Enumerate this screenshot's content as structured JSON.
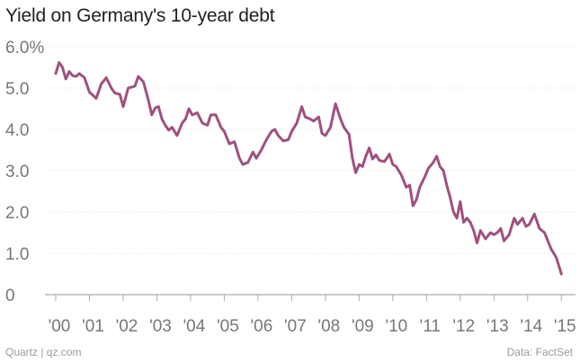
{
  "chart_data": {
    "type": "line",
    "title": "Yield on Germany's 10-year debt",
    "xlabel": "",
    "ylabel": "",
    "ylim": [
      0,
      6
    ],
    "y_ticks": [
      0,
      1.0,
      2.0,
      3.0,
      4.0,
      5.0,
      6.0
    ],
    "y_tick_labels": [
      "0",
      "1.0",
      "2.0",
      "3.0",
      "4.0",
      "5.0",
      "6.0%"
    ],
    "x_range": [
      2000.0,
      2015.1
    ],
    "x_tick_values": [
      2000,
      2001,
      2002,
      2003,
      2004,
      2005,
      2006,
      2007,
      2008,
      2009,
      2010,
      2011,
      2012,
      2013,
      2014,
      2015
    ],
    "x_tick_labels": [
      "'00",
      "'01",
      "'02",
      "'03",
      "'04",
      "'05",
      "'06",
      "'07",
      "'08",
      "'09",
      "'10",
      "'11",
      "'12",
      "'13",
      "'14",
      "'15"
    ],
    "grid": true,
    "series": [
      {
        "color": "#a0507e",
        "x": [
          2000.0,
          2000.1,
          2000.2,
          2000.3,
          2000.4,
          2000.5,
          2000.6,
          2000.7,
          2000.85,
          2001.0,
          2001.2,
          2001.35,
          2001.5,
          2001.65,
          2001.75,
          2001.9,
          2002.0,
          2002.15,
          2002.25,
          2002.35,
          2002.45,
          2002.6,
          2002.75,
          2002.85,
          2002.95,
          2003.05,
          2003.15,
          2003.25,
          2003.35,
          2003.45,
          2003.6,
          2003.75,
          2003.85,
          2003.95,
          2004.05,
          2004.2,
          2004.35,
          2004.5,
          2004.6,
          2004.75,
          2004.9,
          2005.0,
          2005.15,
          2005.3,
          2005.45,
          2005.55,
          2005.7,
          2005.85,
          2005.95,
          2006.1,
          2006.25,
          2006.4,
          2006.5,
          2006.6,
          2006.75,
          2006.9,
          2007.0,
          2007.15,
          2007.3,
          2007.4,
          2007.55,
          2007.65,
          2007.8,
          2007.9,
          2008.0,
          2008.15,
          2008.3,
          2008.45,
          2008.55,
          2008.7,
          2008.8,
          2008.9,
          2009.0,
          2009.1,
          2009.2,
          2009.3,
          2009.4,
          2009.5,
          2009.6,
          2009.75,
          2009.9,
          2010.0,
          2010.1,
          2010.25,
          2010.4,
          2010.5,
          2010.6,
          2010.7,
          2010.8,
          2010.95,
          2011.05,
          2011.2,
          2011.3,
          2011.4,
          2011.5,
          2011.6,
          2011.7,
          2011.8,
          2011.9,
          2012.0,
          2012.1,
          2012.2,
          2012.3,
          2012.4,
          2012.5,
          2012.6,
          2012.75,
          2012.9,
          2013.0,
          2013.1,
          2013.2,
          2013.3,
          2013.45,
          2013.6,
          2013.7,
          2013.85,
          2013.95,
          2014.05,
          2014.2,
          2014.35,
          2014.5,
          2014.6,
          2014.7,
          2014.85,
          2015.0
        ],
        "values": [
          5.35,
          5.62,
          5.5,
          5.22,
          5.4,
          5.3,
          5.28,
          5.35,
          5.25,
          4.9,
          4.75,
          5.1,
          5.25,
          5.0,
          4.88,
          4.85,
          4.55,
          5.0,
          5.02,
          5.05,
          5.28,
          5.15,
          4.7,
          4.35,
          4.52,
          4.55,
          4.25,
          4.1,
          3.98,
          4.05,
          3.85,
          4.15,
          4.25,
          4.5,
          4.35,
          4.4,
          4.15,
          4.1,
          4.35,
          4.35,
          4.05,
          3.95,
          3.65,
          3.7,
          3.3,
          3.15,
          3.2,
          3.45,
          3.3,
          3.5,
          3.75,
          3.95,
          4.0,
          3.85,
          3.72,
          3.75,
          3.95,
          4.15,
          4.55,
          4.3,
          4.25,
          4.2,
          4.3,
          3.9,
          3.85,
          4.05,
          4.62,
          4.25,
          4.05,
          3.88,
          3.3,
          2.95,
          3.15,
          3.1,
          3.35,
          3.55,
          3.28,
          3.38,
          3.25,
          3.22,
          3.4,
          3.15,
          3.1,
          2.9,
          2.6,
          2.65,
          2.15,
          2.3,
          2.6,
          2.85,
          3.05,
          3.2,
          3.35,
          3.1,
          3.0,
          2.65,
          2.35,
          2.0,
          1.85,
          2.25,
          1.75,
          1.85,
          1.75,
          1.55,
          1.25,
          1.55,
          1.35,
          1.5,
          1.45,
          1.5,
          1.6,
          1.3,
          1.45,
          1.85,
          1.7,
          1.85,
          1.65,
          1.7,
          1.95,
          1.6,
          1.5,
          1.3,
          1.1,
          0.9,
          0.5
        ]
      }
    ]
  },
  "footer": {
    "source_left": "Quartz | qz.com",
    "source_right": "Data: FactSet"
  }
}
